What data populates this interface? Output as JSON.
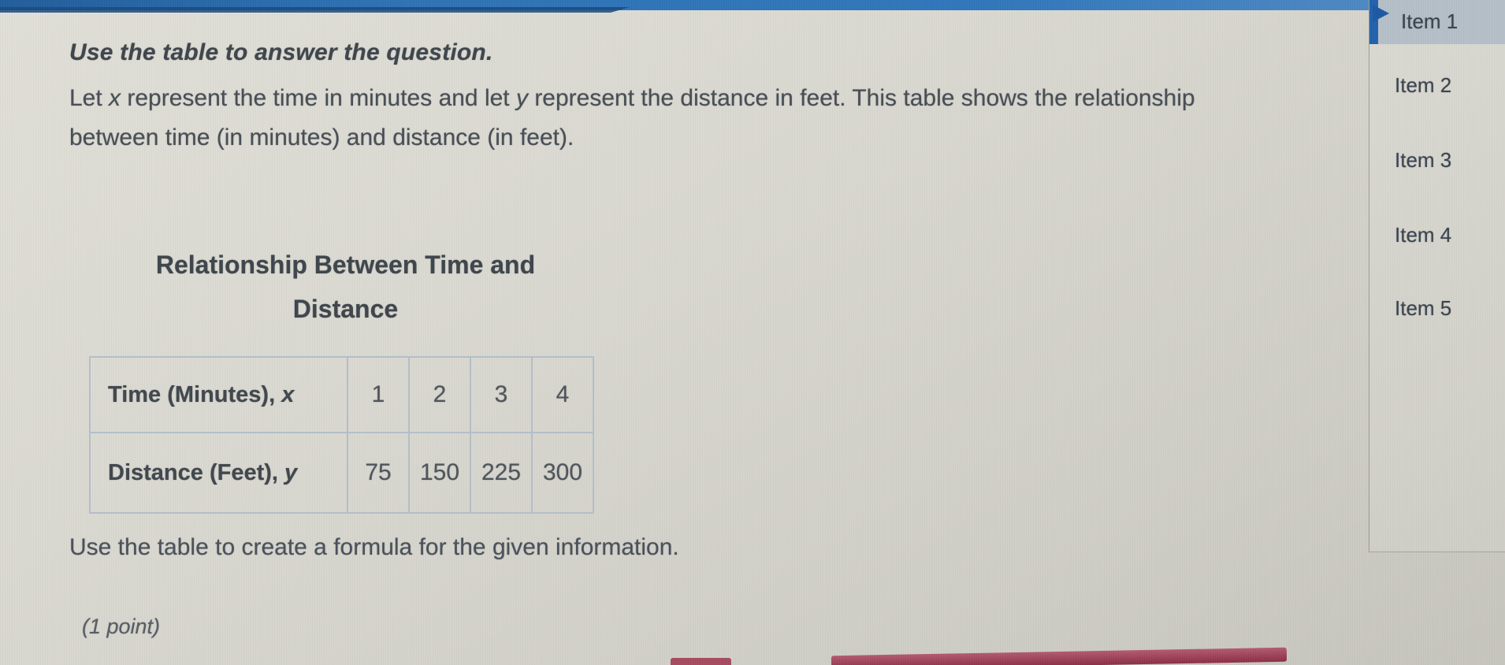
{
  "question": {
    "instruction": "Use the table to answer the question.",
    "body_segments": [
      {
        "text": "Let ",
        "italic": false
      },
      {
        "text": "x",
        "italic": true
      },
      {
        "text": " represent the time in minutes and let ",
        "italic": false
      },
      {
        "text": "y",
        "italic": true
      },
      {
        "text": " represent the distance in feet. This table shows the relationship between time (in minutes) and distance (in feet).",
        "italic": false
      }
    ],
    "prompt": "Use the table to create a formula for the given information.",
    "points": "(1 point)"
  },
  "table": {
    "title_line1": "Relationship Between Time and",
    "title_line2": "Distance",
    "rows": [
      {
        "label_segments": [
          {
            "text": "Time (Minutes), ",
            "italic": false
          },
          {
            "text": "x",
            "italic": true
          }
        ],
        "values": [
          "1",
          "2",
          "3",
          "4"
        ]
      },
      {
        "label_segments": [
          {
            "text": "Distance (Feet), ",
            "italic": false
          },
          {
            "text": "y",
            "italic": true
          }
        ],
        "values": [
          "75",
          "150",
          "225",
          "300"
        ]
      }
    ]
  },
  "sidebar": {
    "items": [
      {
        "label": "Item 1",
        "selected": true
      },
      {
        "label": "Item 2",
        "selected": false
      },
      {
        "label": "Item 3",
        "selected": false
      },
      {
        "label": "Item 4",
        "selected": false
      },
      {
        "label": "Item 5",
        "selected": false
      }
    ]
  },
  "colors": {
    "top_bar_blue": "#2e73b6",
    "top_bar_navy": "#17497e",
    "selected_item_bg": "#b4bfc7",
    "selection_accent_blue": "#2162ac",
    "arrow_blue": "#1d58a3",
    "table_border": "#b3bfc9",
    "text_ink": "#3f464d",
    "answer_bar_maroon": "#8c2e45",
    "background": "#d8d7cf"
  }
}
